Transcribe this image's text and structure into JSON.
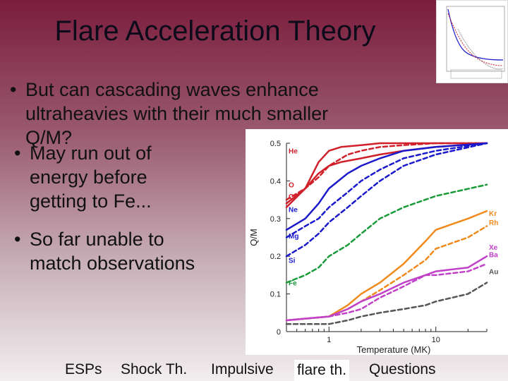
{
  "slide": {
    "title": "Flare Acceleration Theory",
    "bullets": [
      "But can cascading waves enhance ultraheavies with their much smaller Q/M?",
      "May run out of energy before getting to Fe...",
      "So far unable to match observations"
    ],
    "bullet_lines": [
      [
        "But can cascading waves enhance",
        "ultraheavies with their much smaller",
        "Q/M?"
      ],
      [
        "May run out of",
        "energy before",
        "getting to Fe..."
      ],
      [
        "So far unable to",
        "match observations"
      ]
    ]
  },
  "footer": {
    "links": [
      "ESPs",
      "Shock Th.",
      "Impulsive",
      "flare th.",
      "Questions"
    ]
  },
  "colors": {
    "red": "#d0202a",
    "blue": "#1a1acc",
    "green": "#1a9a3a",
    "orange": "#f08a1c",
    "magenta": "#c040c8",
    "gray": "#555555"
  },
  "chart_data": {
    "type": "line",
    "xlabel": "Temperature (MK)",
    "ylabel": "Q/M",
    "x_scale": "log",
    "xlim": [
      0.4,
      30
    ],
    "ylim": [
      0,
      0.5
    ],
    "x_ticks": [
      "1",
      "10"
    ],
    "y_ticks": [
      "0",
      "0.1",
      "0.2",
      "0.3",
      "0.4",
      "0.5"
    ],
    "series": [
      {
        "name": "He",
        "color": "red",
        "dash": false,
        "x": [
          0.4,
          0.6,
          0.8,
          1.0,
          1.3,
          2,
          3,
          5,
          10,
          30
        ],
        "y": [
          0.33,
          0.38,
          0.45,
          0.48,
          0.49,
          0.495,
          0.5,
          0.5,
          0.5,
          0.5
        ]
      },
      {
        "name": "C",
        "color": "red",
        "dash": false,
        "x": [
          0.4,
          0.6,
          0.8,
          1,
          1.3,
          2,
          3,
          5,
          10,
          30
        ],
        "y": [
          0.34,
          0.38,
          0.42,
          0.44,
          0.45,
          0.46,
          0.47,
          0.48,
          0.49,
          0.5
        ]
      },
      {
        "name": "O",
        "color": "red",
        "dash": true,
        "x": [
          0.4,
          0.6,
          0.8,
          1,
          1.5,
          2,
          3,
          5,
          10,
          30
        ],
        "y": [
          0.35,
          0.38,
          0.41,
          0.44,
          0.47,
          0.48,
          0.49,
          0.495,
          0.5,
          0.5
        ]
      },
      {
        "name": "Ne",
        "color": "blue",
        "dash": false,
        "x": [
          0.4,
          0.6,
          0.8,
          1,
          1.5,
          2,
          3,
          5,
          10,
          30
        ],
        "y": [
          0.27,
          0.3,
          0.34,
          0.38,
          0.42,
          0.44,
          0.46,
          0.48,
          0.49,
          0.5
        ]
      },
      {
        "name": "Mg",
        "color": "blue",
        "dash": true,
        "x": [
          0.4,
          0.6,
          0.8,
          1,
          1.5,
          2,
          3,
          5,
          10,
          30
        ],
        "y": [
          0.25,
          0.28,
          0.3,
          0.33,
          0.37,
          0.4,
          0.43,
          0.46,
          0.48,
          0.5
        ]
      },
      {
        "name": "Si",
        "color": "blue",
        "dash": true,
        "x": [
          0.4,
          0.6,
          0.8,
          1,
          1.5,
          2,
          3,
          5,
          10,
          30
        ],
        "y": [
          0.2,
          0.23,
          0.26,
          0.29,
          0.33,
          0.36,
          0.4,
          0.44,
          0.47,
          0.5
        ]
      },
      {
        "name": "Fe",
        "color": "green",
        "dash": true,
        "x": [
          0.4,
          0.6,
          0.8,
          1,
          1.5,
          2,
          3,
          5,
          10,
          30
        ],
        "y": [
          0.13,
          0.15,
          0.17,
          0.2,
          0.23,
          0.26,
          0.3,
          0.33,
          0.36,
          0.39
        ]
      },
      {
        "name": "Kr",
        "color": "orange",
        "dash": false,
        "x": [
          0.4,
          1,
          1.5,
          2,
          3,
          5,
          8,
          10,
          20,
          30
        ],
        "y": [
          0.03,
          0.04,
          0.07,
          0.1,
          0.13,
          0.18,
          0.24,
          0.27,
          0.3,
          0.32
        ]
      },
      {
        "name": "Rh",
        "color": "orange",
        "dash": true,
        "x": [
          0.4,
          1,
          1.5,
          2,
          3,
          5,
          8,
          10,
          20,
          30
        ],
        "y": [
          0.03,
          0.04,
          0.06,
          0.08,
          0.11,
          0.15,
          0.19,
          0.22,
          0.25,
          0.28
        ]
      },
      {
        "name": "Xe",
        "color": "magenta",
        "dash": false,
        "x": [
          0.4,
          1,
          1.5,
          2,
          3,
          5,
          8,
          10,
          20,
          30
        ],
        "y": [
          0.03,
          0.04,
          0.06,
          0.08,
          0.1,
          0.13,
          0.15,
          0.16,
          0.17,
          0.2
        ]
      },
      {
        "name": "Ba",
        "color": "magenta",
        "dash": true,
        "x": [
          0.4,
          1,
          1.5,
          2,
          3,
          5,
          8,
          10,
          20,
          30
        ],
        "y": [
          0.03,
          0.04,
          0.05,
          0.06,
          0.09,
          0.12,
          0.15,
          0.15,
          0.16,
          0.18
        ]
      },
      {
        "name": "Au",
        "color": "gray",
        "dash": true,
        "x": [
          0.4,
          1,
          1.5,
          2,
          3,
          5,
          8,
          10,
          20,
          30
        ],
        "y": [
          0.02,
          0.02,
          0.03,
          0.04,
          0.05,
          0.06,
          0.07,
          0.08,
          0.1,
          0.13
        ]
      }
    ]
  }
}
